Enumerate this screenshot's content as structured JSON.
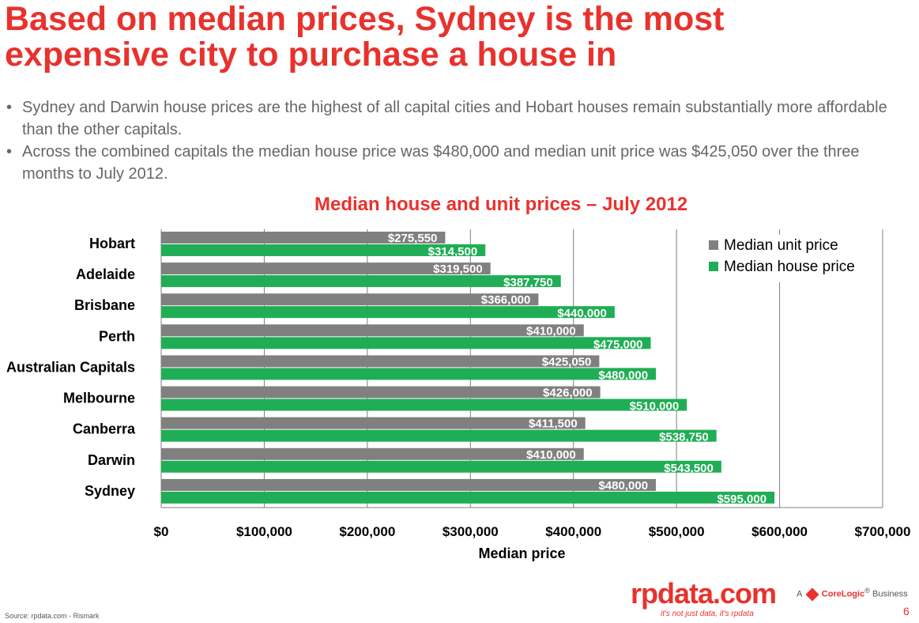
{
  "title": {
    "line1": "Based on median prices, Sydney is the most",
    "line2": "expensive city to purchase a house in"
  },
  "bullets": [
    "Sydney and Darwin house prices are the highest of all capital cities and Hobart houses remain substantially more affordable than the other capitals.",
    "Across the combined capitals the median house price was $480,000 and median unit price was $425,050 over the three months to July 2012."
  ],
  "bullet_glyph": "•",
  "source": "Source:  rpdata.com - Rismark",
  "logo": {
    "text": "rpdata.com",
    "tagline": "it's not just data, it's rpdata",
    "prefix": "A",
    "brand": "CoreLogic",
    "trademark": "®",
    "suffix": "Business"
  },
  "page_number": "6",
  "colors": {
    "unit": "#808080",
    "house": "#1fae55",
    "title_red": "#e8322d",
    "grid": "#7f7f7f"
  },
  "chart_data": {
    "type": "bar",
    "orientation": "horizontal",
    "title": "Median house and unit prices – July 2012",
    "xlabel": "Median price",
    "ylabel": "",
    "categories": [
      "Hobart",
      "Adelaide",
      "Brisbane",
      "Perth",
      "Australian Capitals",
      "Melbourne",
      "Canberra",
      "Darwin",
      "Sydney"
    ],
    "series": [
      {
        "name": "Median unit price",
        "color": "#808080",
        "values": [
          275550,
          319500,
          366000,
          410000,
          425050,
          426000,
          411500,
          410000,
          480000
        ],
        "labels": [
          "$275,550",
          "$319,500",
          "$366,000",
          "$410,000",
          "$425,050",
          "$426,000",
          "$411,500",
          "$410,000",
          "$480,000"
        ]
      },
      {
        "name": "Median house price",
        "color": "#1fae55",
        "values": [
          314500,
          387750,
          440000,
          475000,
          480000,
          510000,
          538750,
          543500,
          595000
        ],
        "labels": [
          "$314,500",
          "$387,750",
          "$440,000",
          "$475,000",
          "$480,000",
          "$510,000",
          "$538,750",
          "$543,500",
          "$595,000"
        ]
      }
    ],
    "xlim": [
      0,
      700000
    ],
    "xticks": [
      0,
      100000,
      200000,
      300000,
      400000,
      500000,
      600000,
      700000
    ],
    "xtick_labels": [
      "$0",
      "$100,000",
      "$200,000",
      "$300,000",
      "$400,000",
      "$500,000",
      "$600,000",
      "$700,000"
    ],
    "grid": true,
    "legend": "top-right"
  }
}
